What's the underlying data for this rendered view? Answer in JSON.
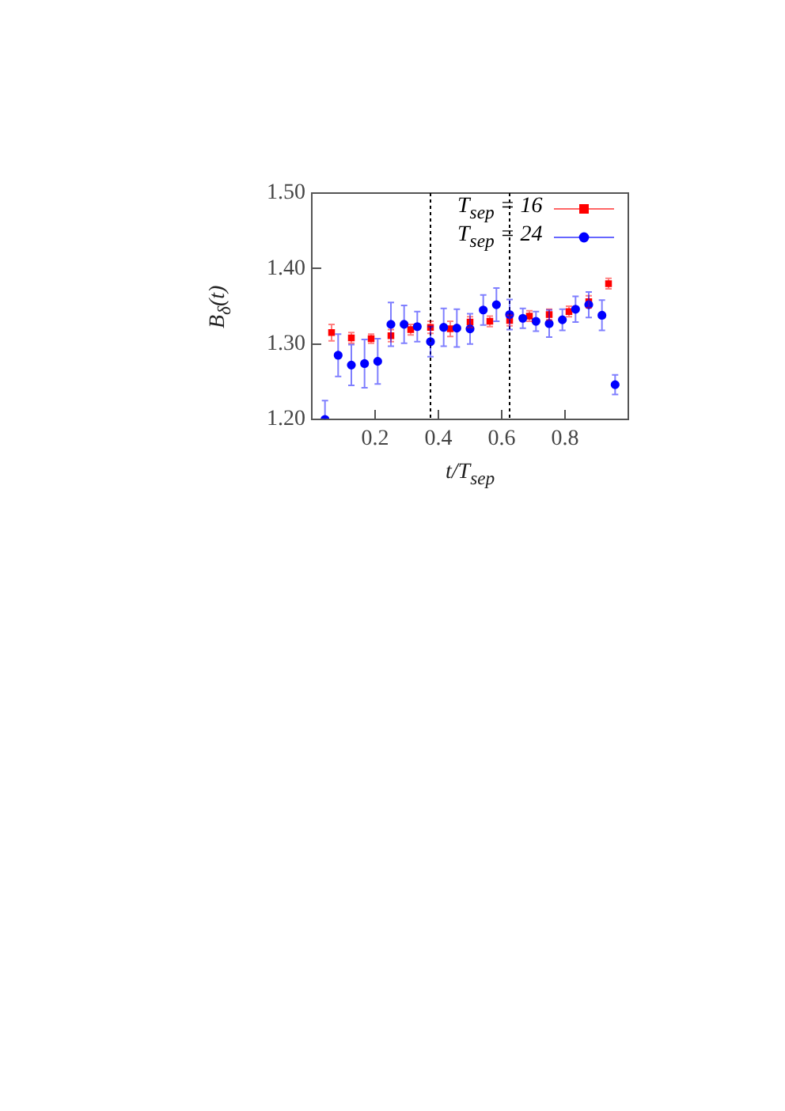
{
  "chart_data": {
    "type": "scatter",
    "xlabel": "t/T$_{sep}$",
    "ylabel": "B$_{δ}$(t)",
    "xlim": [
      0,
      1
    ],
    "xticks": [
      0.2,
      0.4,
      0.6,
      0.8
    ],
    "ylim": [
      1.2,
      1.5
    ],
    "yticks": [
      {
        "value": 1.2,
        "label": "1.20"
      },
      {
        "value": 1.3,
        "label": "1.30"
      },
      {
        "value": 1.4,
        "label": "1.40"
      },
      {
        "value": 1.5,
        "label": "1.50"
      }
    ],
    "grid": false,
    "legend": "top right",
    "ref_lines": [
      {
        "axis": "x",
        "value": 0.375,
        "line_style": "dotted",
        "color": "#000000"
      },
      {
        "axis": "x",
        "value": 0.625,
        "line_style": "dotted",
        "color": "#000000"
      }
    ],
    "series": [
      {
        "name": "T$_{sep}$ = 16",
        "color": "#ff0000",
        "marker": "square",
        "x": [
          0.0625,
          0.125,
          0.1875,
          0.25,
          0.3125,
          0.375,
          0.4375,
          0.5,
          0.5625,
          0.625,
          0.6875,
          0.75,
          0.8125,
          0.875,
          0.9375
        ],
        "values": [
          1.315,
          1.308,
          1.307,
          1.311,
          1.319,
          1.322,
          1.32,
          1.329,
          1.33,
          1.331,
          1.337,
          1.339,
          1.343,
          1.356,
          1.38
        ],
        "errors": [
          0.011,
          0.007,
          0.006,
          0.008,
          0.007,
          0.008,
          0.01,
          0.007,
          0.007,
          0.007,
          0.007,
          0.007,
          0.007,
          0.008,
          0.007
        ]
      },
      {
        "name": "T$_{sep}$ = 24",
        "color": "#0000ff",
        "marker": "circle",
        "x": [
          0.0417,
          0.0833,
          0.125,
          0.1667,
          0.2083,
          0.25,
          0.2917,
          0.3333,
          0.375,
          0.4167,
          0.4583,
          0.5,
          0.5417,
          0.5833,
          0.625,
          0.6667,
          0.7083,
          0.75,
          0.7917,
          0.8333,
          0.875,
          0.9167,
          0.9583
        ],
        "values": [
          1.2,
          1.285,
          1.272,
          1.274,
          1.277,
          1.326,
          1.326,
          1.323,
          1.303,
          1.322,
          1.321,
          1.32,
          1.345,
          1.352,
          1.339,
          1.334,
          1.33,
          1.327,
          1.332,
          1.346,
          1.352,
          1.338,
          1.246
        ],
        "errors": [
          0.025,
          0.028,
          0.027,
          0.032,
          0.03,
          0.029,
          0.025,
          0.02,
          0.02,
          0.025,
          0.025,
          0.02,
          0.02,
          0.022,
          0.02,
          0.013,
          0.013,
          0.018,
          0.014,
          0.017,
          0.017,
          0.02,
          0.013
        ]
      }
    ]
  }
}
